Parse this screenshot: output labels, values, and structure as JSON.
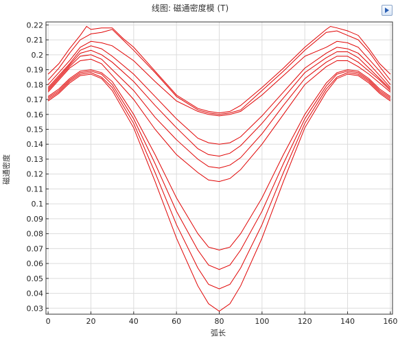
{
  "toolbar": {
    "export_icon": "export-image-icon"
  },
  "chart_data": {
    "type": "line",
    "title": "线图: 磁通密度模 (T)",
    "xlabel": "弧长",
    "ylabel": "磁通密度",
    "xlim": [
      -1,
      161
    ],
    "ylim": [
      0.026,
      0.222
    ],
    "xticks": [
      0,
      20,
      40,
      60,
      80,
      100,
      120,
      140,
      160
    ],
    "yticks": [
      0.03,
      0.04,
      0.05,
      0.06,
      0.07,
      0.08,
      0.09,
      0.1,
      0.11,
      0.12,
      0.13,
      0.14,
      0.15,
      0.16,
      0.17,
      0.18,
      0.19,
      0.2,
      0.21,
      0.22
    ],
    "ytick_labels": [
      "0.03",
      "0.04",
      "0.05",
      "0.06",
      "0.07",
      "0.08",
      "0.09",
      "0.1",
      "0.11",
      "0.12",
      "0.13",
      "0.14",
      "0.15",
      "0.16",
      "0.17",
      "0.18",
      "0.19",
      "0.2",
      "0.21",
      "0.22"
    ],
    "grid": true,
    "color": "#e00000",
    "series": [
      {
        "x": [
          0,
          5,
          10,
          15,
          18,
          20,
          25,
          30,
          35,
          40,
          50,
          60,
          70,
          75,
          80,
          85,
          90,
          100,
          110,
          120,
          125,
          130,
          132,
          135,
          140,
          145,
          150,
          155,
          160
        ],
        "y": [
          0.187,
          0.194,
          0.204,
          0.213,
          0.219,
          0.217,
          0.218,
          0.218,
          0.211,
          0.205,
          0.189,
          0.173,
          0.164,
          0.162,
          0.161,
          0.162,
          0.166,
          0.178,
          0.191,
          0.205,
          0.211,
          0.217,
          0.219,
          0.218,
          0.216,
          0.213,
          0.204,
          0.194,
          0.187
        ]
      },
      {
        "x": [
          0,
          5,
          10,
          15,
          20,
          25,
          30,
          35,
          40,
          50,
          60,
          70,
          75,
          80,
          85,
          90,
          100,
          110,
          120,
          125,
          130,
          135,
          140,
          145,
          150,
          155,
          160
        ],
        "y": [
          0.183,
          0.191,
          0.201,
          0.21,
          0.214,
          0.215,
          0.217,
          0.21,
          0.203,
          0.188,
          0.172,
          0.163,
          0.161,
          0.16,
          0.161,
          0.163,
          0.176,
          0.189,
          0.203,
          0.209,
          0.215,
          0.216,
          0.213,
          0.21,
          0.202,
          0.192,
          0.183
        ]
      },
      {
        "x": [
          0,
          5,
          10,
          15,
          20,
          25,
          30,
          40,
          50,
          60,
          70,
          75,
          80,
          85,
          90,
          100,
          110,
          120,
          130,
          135,
          140,
          145,
          150,
          155,
          160
        ],
        "y": [
          0.18,
          0.188,
          0.196,
          0.205,
          0.209,
          0.208,
          0.206,
          0.196,
          0.182,
          0.169,
          0.162,
          0.16,
          0.159,
          0.16,
          0.162,
          0.173,
          0.186,
          0.199,
          0.205,
          0.209,
          0.208,
          0.205,
          0.197,
          0.189,
          0.18
        ]
      },
      {
        "x": [
          0,
          5,
          10,
          15,
          20,
          25,
          30,
          40,
          50,
          60,
          70,
          75,
          80,
          85,
          90,
          100,
          110,
          120,
          130,
          135,
          140,
          145,
          150,
          155,
          160
        ],
        "y": [
          0.178,
          0.186,
          0.194,
          0.203,
          0.206,
          0.204,
          0.199,
          0.187,
          0.172,
          0.157,
          0.144,
          0.141,
          0.14,
          0.141,
          0.145,
          0.159,
          0.175,
          0.191,
          0.201,
          0.205,
          0.204,
          0.201,
          0.194,
          0.186,
          0.178
        ]
      },
      {
        "x": [
          0,
          5,
          10,
          15,
          20,
          25,
          30,
          40,
          50,
          60,
          70,
          75,
          80,
          85,
          90,
          100,
          110,
          120,
          130,
          135,
          140,
          145,
          150,
          155,
          160
        ],
        "y": [
          0.177,
          0.185,
          0.193,
          0.201,
          0.203,
          0.2,
          0.195,
          0.182,
          0.166,
          0.151,
          0.137,
          0.133,
          0.132,
          0.134,
          0.139,
          0.154,
          0.171,
          0.188,
          0.198,
          0.202,
          0.202,
          0.198,
          0.191,
          0.184,
          0.177
        ]
      },
      {
        "x": [
          0,
          5,
          10,
          15,
          20,
          25,
          30,
          40,
          50,
          60,
          70,
          75,
          80,
          85,
          90,
          100,
          110,
          120,
          130,
          135,
          140,
          145,
          150,
          155,
          160
        ],
        "y": [
          0.176,
          0.184,
          0.192,
          0.199,
          0.2,
          0.197,
          0.19,
          0.176,
          0.158,
          0.143,
          0.13,
          0.125,
          0.124,
          0.126,
          0.131,
          0.147,
          0.166,
          0.184,
          0.195,
          0.199,
          0.199,
          0.195,
          0.189,
          0.183,
          0.176
        ]
      },
      {
        "x": [
          0,
          5,
          10,
          15,
          20,
          25,
          30,
          40,
          50,
          60,
          70,
          75,
          80,
          85,
          90,
          100,
          110,
          120,
          130,
          135,
          140,
          145,
          150,
          155,
          160
        ],
        "y": [
          0.175,
          0.183,
          0.191,
          0.196,
          0.197,
          0.194,
          0.186,
          0.17,
          0.15,
          0.133,
          0.121,
          0.116,
          0.115,
          0.117,
          0.123,
          0.14,
          0.16,
          0.18,
          0.192,
          0.196,
          0.196,
          0.192,
          0.187,
          0.181,
          0.175
        ]
      },
      {
        "x": [
          0,
          5,
          10,
          15,
          20,
          25,
          30,
          40,
          50,
          60,
          70,
          75,
          80,
          85,
          90,
          100,
          110,
          120,
          130,
          135,
          140,
          145,
          150,
          155,
          160
        ],
        "y": [
          0.172,
          0.177,
          0.184,
          0.189,
          0.19,
          0.188,
          0.182,
          0.16,
          0.133,
          0.104,
          0.08,
          0.071,
          0.069,
          0.071,
          0.08,
          0.104,
          0.133,
          0.16,
          0.181,
          0.188,
          0.19,
          0.189,
          0.184,
          0.177,
          0.172
        ]
      },
      {
        "x": [
          0,
          5,
          10,
          15,
          20,
          25,
          30,
          40,
          50,
          60,
          70,
          75,
          80,
          85,
          90,
          100,
          110,
          120,
          130,
          135,
          140,
          145,
          150,
          155,
          160
        ],
        "y": [
          0.171,
          0.176,
          0.183,
          0.188,
          0.189,
          0.187,
          0.18,
          0.157,
          0.127,
          0.095,
          0.069,
          0.059,
          0.056,
          0.059,
          0.069,
          0.095,
          0.127,
          0.157,
          0.179,
          0.187,
          0.189,
          0.188,
          0.183,
          0.176,
          0.171
        ]
      },
      {
        "x": [
          0,
          5,
          10,
          15,
          20,
          25,
          30,
          40,
          50,
          60,
          70,
          75,
          80,
          85,
          90,
          100,
          110,
          120,
          130,
          135,
          140,
          145,
          150,
          155,
          160
        ],
        "y": [
          0.17,
          0.175,
          0.182,
          0.187,
          0.188,
          0.185,
          0.178,
          0.154,
          0.121,
          0.086,
          0.057,
          0.046,
          0.043,
          0.046,
          0.057,
          0.086,
          0.121,
          0.154,
          0.177,
          0.185,
          0.188,
          0.187,
          0.182,
          0.175,
          0.17
        ]
      },
      {
        "x": [
          0,
          5,
          10,
          15,
          20,
          25,
          30,
          40,
          50,
          60,
          70,
          75,
          80,
          85,
          90,
          100,
          110,
          120,
          130,
          135,
          140,
          145,
          150,
          155,
          160
        ],
        "y": [
          0.169,
          0.174,
          0.181,
          0.186,
          0.187,
          0.184,
          0.176,
          0.151,
          0.115,
          0.077,
          0.045,
          0.033,
          0.028,
          0.033,
          0.045,
          0.077,
          0.115,
          0.151,
          0.175,
          0.184,
          0.187,
          0.186,
          0.181,
          0.174,
          0.169
        ]
      }
    ]
  }
}
